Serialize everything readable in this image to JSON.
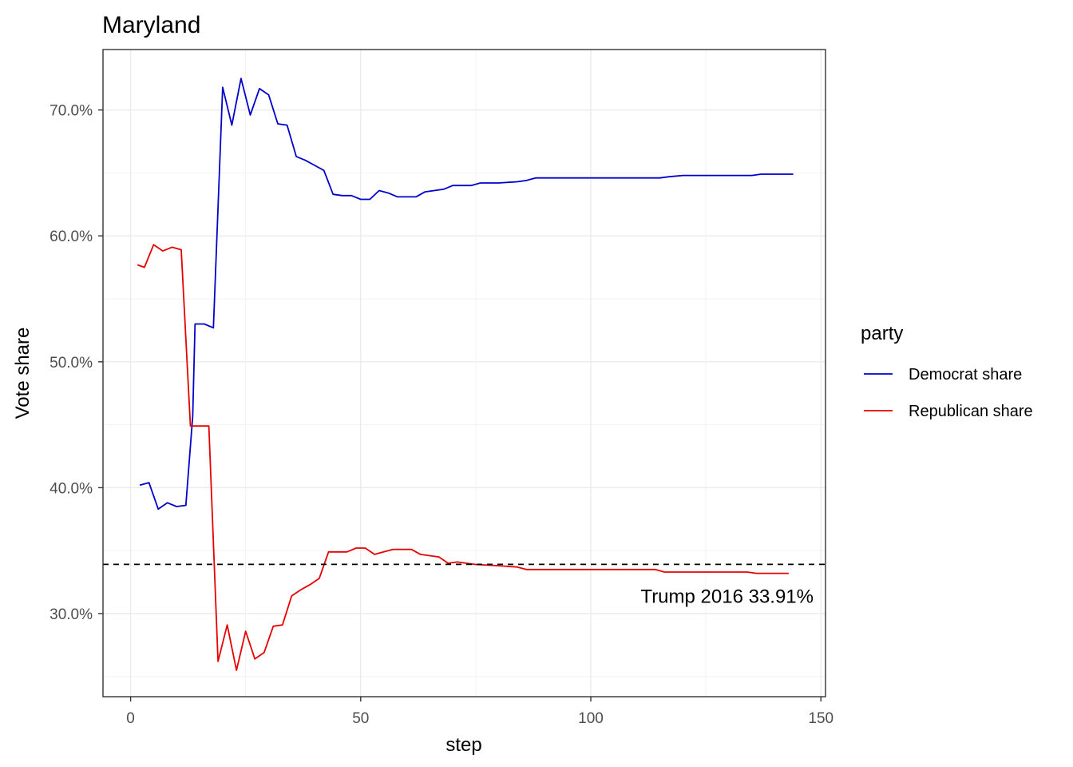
{
  "chart_data": {
    "type": "line",
    "title": "Maryland",
    "xlabel": "step",
    "ylabel": "Vote share",
    "xlim": [
      -6,
      151
    ],
    "ylim": [
      0.234,
      0.748
    ],
    "x_ticks": [
      0,
      50,
      100,
      150
    ],
    "x_tick_labels": [
      "0",
      "50",
      "100",
      "150"
    ],
    "y_ticks": [
      0.3,
      0.4,
      0.5,
      0.6,
      0.7
    ],
    "y_tick_labels": [
      "30.0%",
      "40.0%",
      "50.0%",
      "60.0%",
      "70.0%"
    ],
    "grid": true,
    "legend": {
      "title": "party",
      "position": "right"
    },
    "reference_line": {
      "y": 0.3391,
      "style": "dashed",
      "color": "#000000",
      "label": "Trump 2016 33.91%"
    },
    "series": [
      {
        "name": "Democrat share",
        "color": "#0000cc",
        "points": [
          [
            2,
            0.402
          ],
          [
            4,
            0.404
          ],
          [
            6,
            0.383
          ],
          [
            8,
            0.388
          ],
          [
            10,
            0.385
          ],
          [
            12,
            0.386
          ],
          [
            13.5,
            0.457
          ],
          [
            14,
            0.53
          ],
          [
            16,
            0.53
          ],
          [
            18,
            0.527
          ],
          [
            20,
            0.718
          ],
          [
            22,
            0.688
          ],
          [
            24,
            0.725
          ],
          [
            26,
            0.696
          ],
          [
            28,
            0.717
          ],
          [
            30,
            0.712
          ],
          [
            32,
            0.689
          ],
          [
            34,
            0.688
          ],
          [
            36,
            0.663
          ],
          [
            38,
            0.66
          ],
          [
            40,
            0.656
          ],
          [
            42,
            0.652
          ],
          [
            44,
            0.633
          ],
          [
            46,
            0.632
          ],
          [
            48,
            0.632
          ],
          [
            50,
            0.629
          ],
          [
            52,
            0.629
          ],
          [
            54,
            0.636
          ],
          [
            56,
            0.634
          ],
          [
            58,
            0.631
          ],
          [
            60,
            0.631
          ],
          [
            62,
            0.631
          ],
          [
            64,
            0.635
          ],
          [
            66,
            0.636
          ],
          [
            68,
            0.637
          ],
          [
            70,
            0.64
          ],
          [
            72,
            0.64
          ],
          [
            74,
            0.64
          ],
          [
            76,
            0.642
          ],
          [
            80,
            0.642
          ],
          [
            84,
            0.643
          ],
          [
            86,
            0.644
          ],
          [
            88,
            0.646
          ],
          [
            92,
            0.646
          ],
          [
            100,
            0.646
          ],
          [
            110,
            0.646
          ],
          [
            115,
            0.646
          ],
          [
            117,
            0.647
          ],
          [
            120,
            0.648
          ],
          [
            125,
            0.648
          ],
          [
            130,
            0.648
          ],
          [
            135,
            0.648
          ],
          [
            137,
            0.649
          ],
          [
            144,
            0.649
          ]
        ]
      },
      {
        "name": "Republican share",
        "color": "#e60000",
        "points": [
          [
            1.5,
            0.577
          ],
          [
            3,
            0.575
          ],
          [
            5,
            0.593
          ],
          [
            7,
            0.588
          ],
          [
            9,
            0.591
          ],
          [
            11,
            0.589
          ],
          [
            13,
            0.449
          ],
          [
            15,
            0.449
          ],
          [
            17,
            0.449
          ],
          [
            19,
            0.262
          ],
          [
            21,
            0.291
          ],
          [
            23,
            0.255
          ],
          [
            25,
            0.286
          ],
          [
            27,
            0.264
          ],
          [
            29,
            0.269
          ],
          [
            31,
            0.29
          ],
          [
            33,
            0.291
          ],
          [
            35,
            0.314
          ],
          [
            37,
            0.319
          ],
          [
            39,
            0.323
          ],
          [
            41,
            0.328
          ],
          [
            43,
            0.349
          ],
          [
            45,
            0.349
          ],
          [
            47,
            0.349
          ],
          [
            49,
            0.352
          ],
          [
            51,
            0.352
          ],
          [
            53,
            0.347
          ],
          [
            55,
            0.349
          ],
          [
            57,
            0.351
          ],
          [
            59,
            0.351
          ],
          [
            61,
            0.351
          ],
          [
            63,
            0.347
          ],
          [
            65,
            0.346
          ],
          [
            67,
            0.345
          ],
          [
            69,
            0.34
          ],
          [
            71,
            0.341
          ],
          [
            73,
            0.34
          ],
          [
            75,
            0.339
          ],
          [
            80,
            0.338
          ],
          [
            84,
            0.337
          ],
          [
            86,
            0.335
          ],
          [
            90,
            0.335
          ],
          [
            100,
            0.335
          ],
          [
            110,
            0.335
          ],
          [
            114,
            0.335
          ],
          [
            116,
            0.333
          ],
          [
            120,
            0.333
          ],
          [
            125,
            0.333
          ],
          [
            130,
            0.333
          ],
          [
            134,
            0.333
          ],
          [
            136,
            0.332
          ],
          [
            140,
            0.332
          ],
          [
            143,
            0.332
          ]
        ]
      }
    ]
  }
}
